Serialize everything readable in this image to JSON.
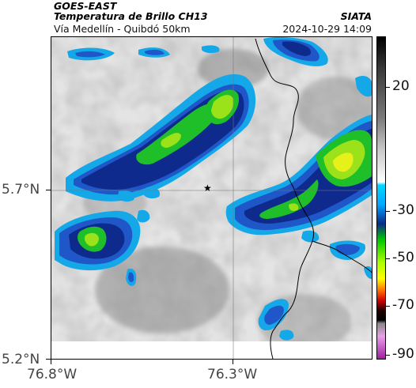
{
  "header": {
    "satellite": "GOES-EAST",
    "product": "Temperatura de Brillo CH13",
    "region": "Vía Medellín - Quibdó 50km",
    "source": "SIATA",
    "datetime": "2024-10-29 14:09"
  },
  "axes": {
    "lat_ticks": [
      "5.7°N",
      "5.2°N"
    ],
    "lon_ticks": [
      "76.8°W",
      "76.3°W"
    ]
  },
  "colorbar": {
    "ticks": [
      "20",
      "-30",
      "-50",
      "-70",
      "-90"
    ],
    "colors": [
      "#000000",
      "#7a7a7a",
      "#ffffff",
      "#00a8ff",
      "#0a2a8a",
      "#00c800",
      "#ffff00",
      "#ff6600",
      "#cc0000",
      "#000000",
      "#e8a0e8",
      "#a020a0"
    ]
  },
  "map": {
    "marker": "star-icon",
    "colors": {
      "cold_core": "#0d2a8c",
      "mid": "#1f56c8",
      "edge": "#14a8e8",
      "green": "#1fbf2a",
      "yellow_green": "#9be21a",
      "yellow": "#e8f01a",
      "border": "#000000"
    }
  }
}
